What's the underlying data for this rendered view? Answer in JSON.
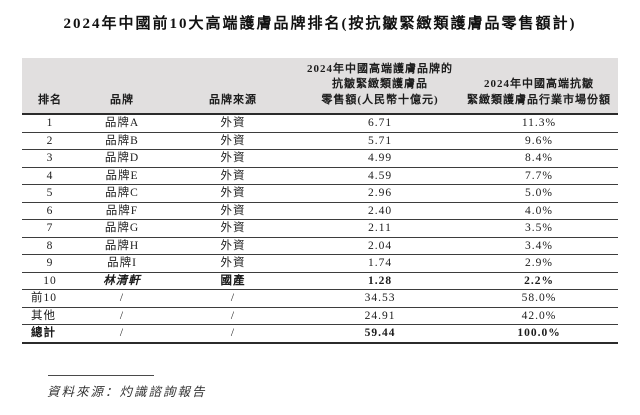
{
  "title": "2024年中國前10大高端護膚品牌排名(按抗皺緊緻類護膚品零售額計)",
  "table": {
    "headers": {
      "rank": "排名",
      "brand": "品牌",
      "origin": "品牌來源",
      "retail_lines": [
        "2024年中國高端護膚品牌的",
        "抗皺緊緻類護膚品",
        "零售額(人民幣十億元)"
      ],
      "share_lines": [
        "2024年中國高端抗皺",
        "緊緻類護膚品行業市場份額"
      ]
    },
    "rows": [
      {
        "rank": "1",
        "brand": "品牌A",
        "origin": "外資",
        "retail": "6.71",
        "share": "11.3%"
      },
      {
        "rank": "2",
        "brand": "品牌B",
        "origin": "外資",
        "retail": "5.71",
        "share": "9.6%"
      },
      {
        "rank": "3",
        "brand": "品牌D",
        "origin": "外資",
        "retail": "4.99",
        "share": "8.4%"
      },
      {
        "rank": "4",
        "brand": "品牌E",
        "origin": "外資",
        "retail": "4.59",
        "share": "7.7%"
      },
      {
        "rank": "5",
        "brand": "品牌C",
        "origin": "外資",
        "retail": "2.96",
        "share": "5.0%"
      },
      {
        "rank": "6",
        "brand": "品牌F",
        "origin": "外資",
        "retail": "2.40",
        "share": "4.0%"
      },
      {
        "rank": "7",
        "brand": "品牌G",
        "origin": "外資",
        "retail": "2.11",
        "share": "3.5%"
      },
      {
        "rank": "8",
        "brand": "品牌H",
        "origin": "外資",
        "retail": "2.04",
        "share": "3.4%"
      },
      {
        "rank": "9",
        "brand": "品牌I",
        "origin": "外資",
        "retail": "1.74",
        "share": "2.9%"
      },
      {
        "rank": "10",
        "brand": "林清軒",
        "origin": "國產",
        "retail": "1.28",
        "share": "2.2%"
      }
    ],
    "summary_rows": [
      {
        "label": "前10",
        "brand": "/",
        "origin": "/",
        "retail": "34.53",
        "share": "58.0%"
      },
      {
        "label": "其他",
        "brand": "/",
        "origin": "/",
        "retail": "24.91",
        "share": "42.0%"
      },
      {
        "label": "總計",
        "brand": "/",
        "origin": "/",
        "retail": "59.44",
        "share": "100.0%"
      }
    ]
  },
  "footer": {
    "source": "資料來源：灼識諮詢報告"
  },
  "colors": {
    "header_bg": "#e1dfdf",
    "rule_dark": "#2b2b2b",
    "rule_row": "#3d3d3d",
    "text": "#1c1c1c"
  }
}
